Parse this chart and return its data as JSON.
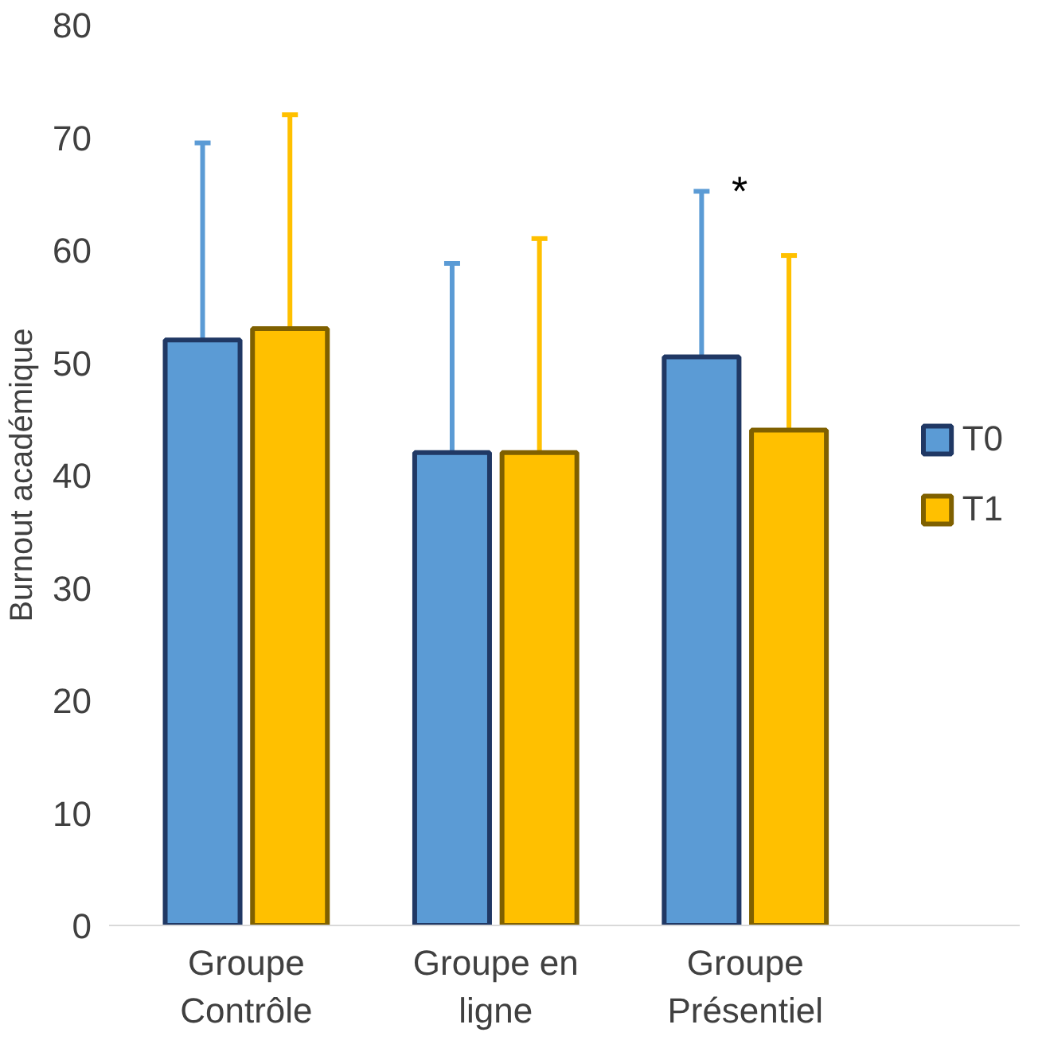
{
  "chart_data": {
    "type": "bar",
    "ylabel": "Burnout académique",
    "categories": [
      "Groupe\nContrôle",
      "Groupe en\nligne",
      "Groupe\nPrésentiel"
    ],
    "series": [
      {
        "name": "T0",
        "color": "#5b9bd5",
        "values": [
          52,
          42,
          50.5
        ],
        "errors": [
          17.5,
          16.8,
          14.7
        ]
      },
      {
        "name": "T1",
        "color": "#ffc000",
        "values": [
          53,
          42,
          44
        ],
        "errors": [
          19,
          19,
          15.5
        ]
      }
    ],
    "ylim": [
      0,
      80
    ],
    "yticks": [
      0,
      10,
      20,
      30,
      40,
      50,
      60,
      70,
      80
    ],
    "grid": false,
    "legend": "right",
    "annotations": [
      "*"
    ]
  }
}
